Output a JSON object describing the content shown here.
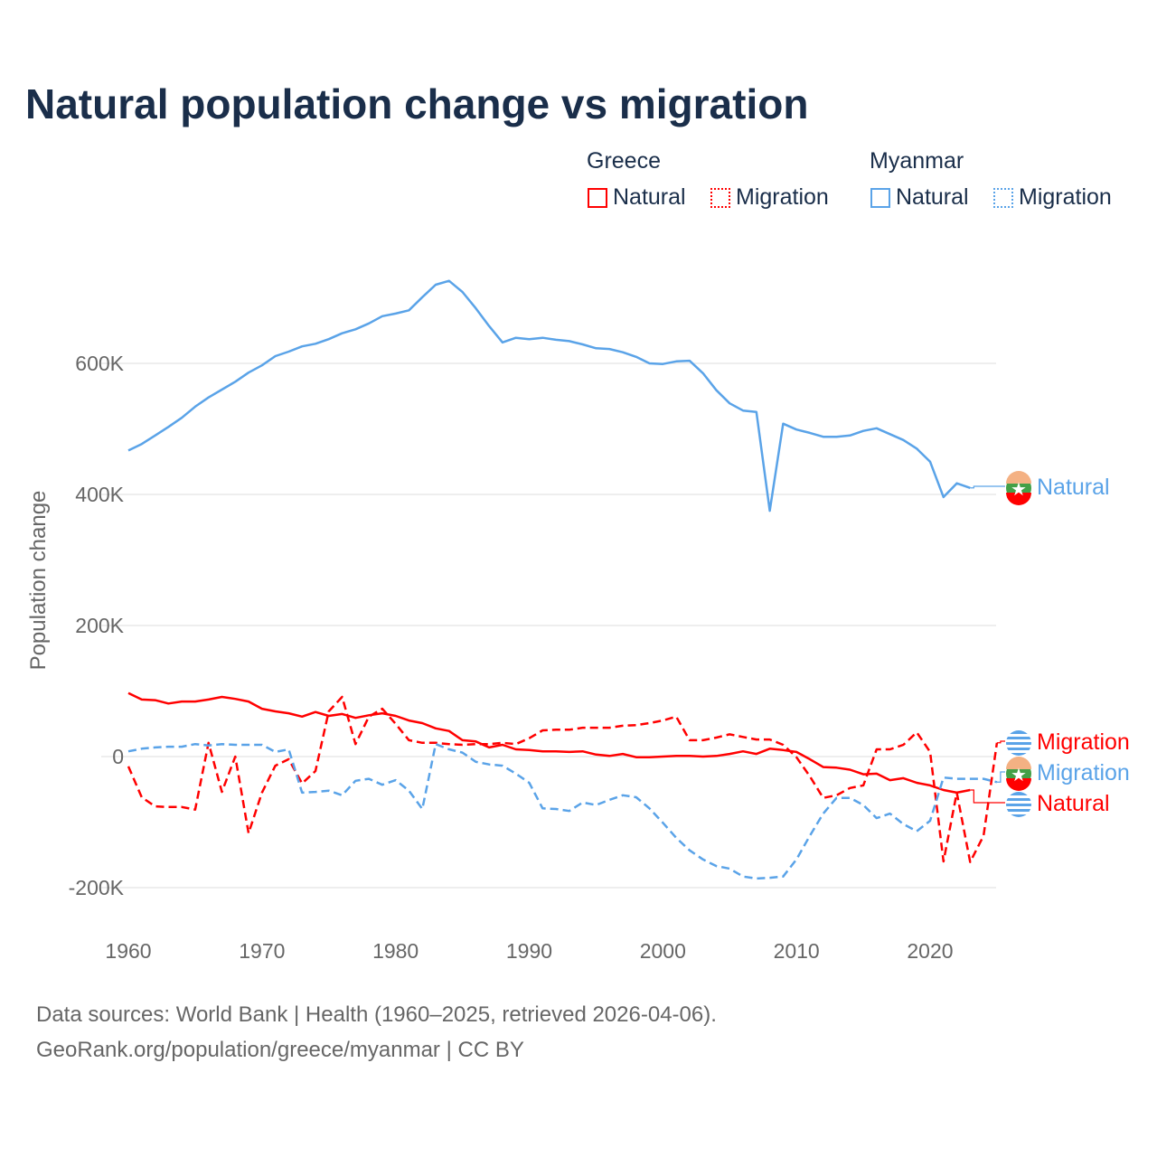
{
  "title": "Natural population change vs migration",
  "legend": {
    "groups": [
      {
        "name": "Greece",
        "items": [
          "Natural",
          "Migration"
        ]
      },
      {
        "name": "Myanmar",
        "items": [
          "Natural",
          "Migration"
        ]
      }
    ]
  },
  "footer": {
    "line1": "Data sources: World Bank | Health (1960–2025, retrieved 2026-04-06).",
    "line2": "GeoRank.org/population/greece/myanmar | CC BY"
  },
  "colors": {
    "greece": "#ff0000",
    "myanmar": "#5aa3e8"
  },
  "chart_data": {
    "type": "line",
    "title": "Natural population change vs migration",
    "xlabel": "",
    "ylabel": "Population change",
    "xlim": [
      1960,
      2025
    ],
    "ylim": [
      -200000,
      750000
    ],
    "xticks": [
      1960,
      1970,
      1980,
      1990,
      2000,
      2010,
      2020
    ],
    "xtick_labels": [
      "1960",
      "1970",
      "1980",
      "1990",
      "2000",
      "2010",
      "2020"
    ],
    "yticks": [
      -200000,
      0,
      200000,
      400000,
      600000
    ],
    "ytick_labels": [
      "-200K",
      "0",
      "200K",
      "400K",
      "600K"
    ],
    "end_labels": [
      "Natural",
      "Migration",
      "Migration",
      "Natural"
    ],
    "series": [
      {
        "name": "Greece Natural",
        "country": "Greece",
        "style": "solid",
        "start": 1960,
        "values": [
          97,
          87,
          86,
          81,
          84,
          84,
          87,
          91,
          88,
          84,
          73,
          69,
          66,
          61,
          68,
          62,
          65,
          59,
          63,
          66,
          62,
          55,
          51,
          43,
          39,
          25,
          23,
          14,
          18,
          11,
          10,
          8,
          8,
          7,
          8,
          3,
          1,
          4,
          -1,
          -1,
          0,
          1,
          1,
          0,
          1,
          4,
          8,
          4,
          12,
          10,
          7,
          -4,
          -16,
          -17,
          -20,
          -27,
          -26,
          -36,
          -33,
          -40,
          -44,
          -51,
          -55,
          -51
        ]
      },
      {
        "name": "Greece Migration",
        "country": "Greece",
        "style": "dashed",
        "start": 1960,
        "values": [
          -15,
          -62,
          -76,
          -77,
          -77,
          -81,
          21,
          -54,
          0,
          -117,
          -55,
          -14,
          -4,
          -41,
          -22,
          69,
          91,
          19,
          61,
          73,
          50,
          25,
          21,
          21,
          19,
          18,
          19,
          19,
          21,
          19,
          28,
          40,
          41,
          41,
          44,
          44,
          44,
          47,
          48,
          51,
          55,
          61,
          25,
          25,
          29,
          34,
          30,
          26,
          26,
          18,
          -1,
          -30,
          -63,
          -59,
          -48,
          -44,
          11,
          11,
          18,
          37,
          7,
          -160,
          -55,
          -161,
          -121,
          21
        ]
      },
      {
        "name": "Myanmar Natural",
        "country": "Myanmar",
        "style": "solid",
        "start": 1960,
        "values": [
          467,
          477,
          490,
          503,
          517,
          534,
          548,
          560,
          572,
          586,
          597,
          611,
          618,
          626,
          630,
          637,
          646,
          652,
          661,
          672,
          676,
          681,
          701,
          720,
          726,
          709,
          684,
          657,
          632,
          639,
          637,
          639,
          636,
          634,
          629,
          623,
          622,
          617,
          610,
          600,
          599,
          603,
          604,
          585,
          559,
          539,
          528,
          526,
          375,
          508,
          499,
          494,
          488,
          488,
          490,
          497,
          501,
          492,
          483,
          470,
          450,
          396,
          417,
          410
        ]
      },
      {
        "name": "Myanmar Migration",
        "country": "Myanmar",
        "style": "dashed",
        "start": 1960,
        "values": [
          8,
          12,
          14,
          15,
          15,
          19,
          17,
          19,
          18,
          18,
          18,
          7,
          11,
          -55,
          -54,
          -52,
          -59,
          -37,
          -34,
          -43,
          -36,
          -52,
          -80,
          19,
          11,
          6,
          -8,
          -12,
          -14,
          -26,
          -40,
          -79,
          -80,
          -83,
          -70,
          -74,
          -66,
          -59,
          -62,
          -79,
          -101,
          -124,
          -143,
          -157,
          -167,
          -171,
          -183,
          -186,
          -185,
          -183,
          -157,
          -121,
          -87,
          -63,
          -63,
          -74,
          -94,
          -87,
          -103,
          -114,
          -98,
          -32,
          -34,
          -34,
          -34,
          -39
        ]
      }
    ],
    "value_unit": "thousands"
  }
}
